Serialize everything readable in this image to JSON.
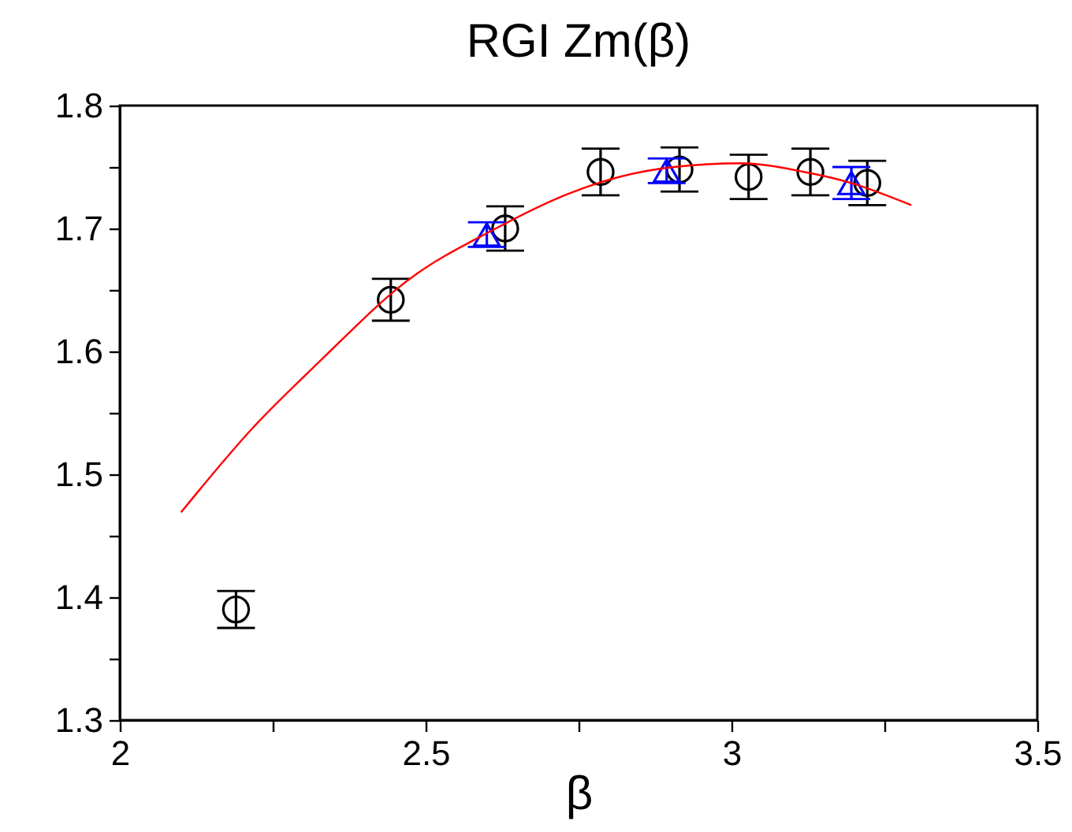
{
  "chart_data": {
    "type": "scatter",
    "title": "RGI Zm(β)",
    "xlabel": "β",
    "xlim": [
      2,
      3.5
    ],
    "ylim": [
      1.3,
      1.8
    ],
    "xticks": [
      2,
      {
        "value": 2.25,
        "label": null
      },
      2.5,
      {
        "value": 2.75,
        "label": null
      },
      3,
      {
        "value": 3.25,
        "label": null
      },
      3.5
    ],
    "yticks": [
      1.3,
      {
        "value": 1.35,
        "label": null
      },
      1.4,
      {
        "value": 1.45,
        "label": null
      },
      1.5,
      {
        "value": 1.55,
        "label": null
      },
      1.6,
      {
        "value": 1.65,
        "label": null
      },
      1.7,
      {
        "value": 1.75,
        "label": null
      },
      1.8
    ],
    "series": [
      {
        "marker": "circle",
        "color": "#000000",
        "x": [
          2.19,
          2.443,
          2.63,
          2.786,
          2.915,
          3.028,
          3.129,
          3.222
        ],
        "values": [
          1.39,
          1.642,
          1.7,
          1.746,
          1.748,
          1.742,
          1.746,
          1.737
        ],
        "errors": [
          0.015,
          0.017,
          0.018,
          0.019,
          0.018,
          0.018,
          0.019,
          0.018
        ]
      },
      {
        "marker": "triangle",
        "color": "#0000ff",
        "x": [
          2.6,
          2.894,
          3.196
        ],
        "values": [
          1.695,
          1.747,
          1.737
        ],
        "errors": [
          0.01,
          0.01,
          0.013
        ]
      },
      {
        "type": "line",
        "marker": "none",
        "color": "#ff0000",
        "x": [
          2.1,
          2.216,
          2.327,
          2.474,
          2.611,
          2.732,
          2.817,
          2.905,
          3.015,
          3.119,
          3.196,
          3.294
        ],
        "values": [
          1.469,
          1.537,
          1.592,
          1.659,
          1.699,
          1.728,
          1.742,
          1.75,
          1.753,
          1.746,
          1.737,
          1.719
        ]
      }
    ]
  }
}
